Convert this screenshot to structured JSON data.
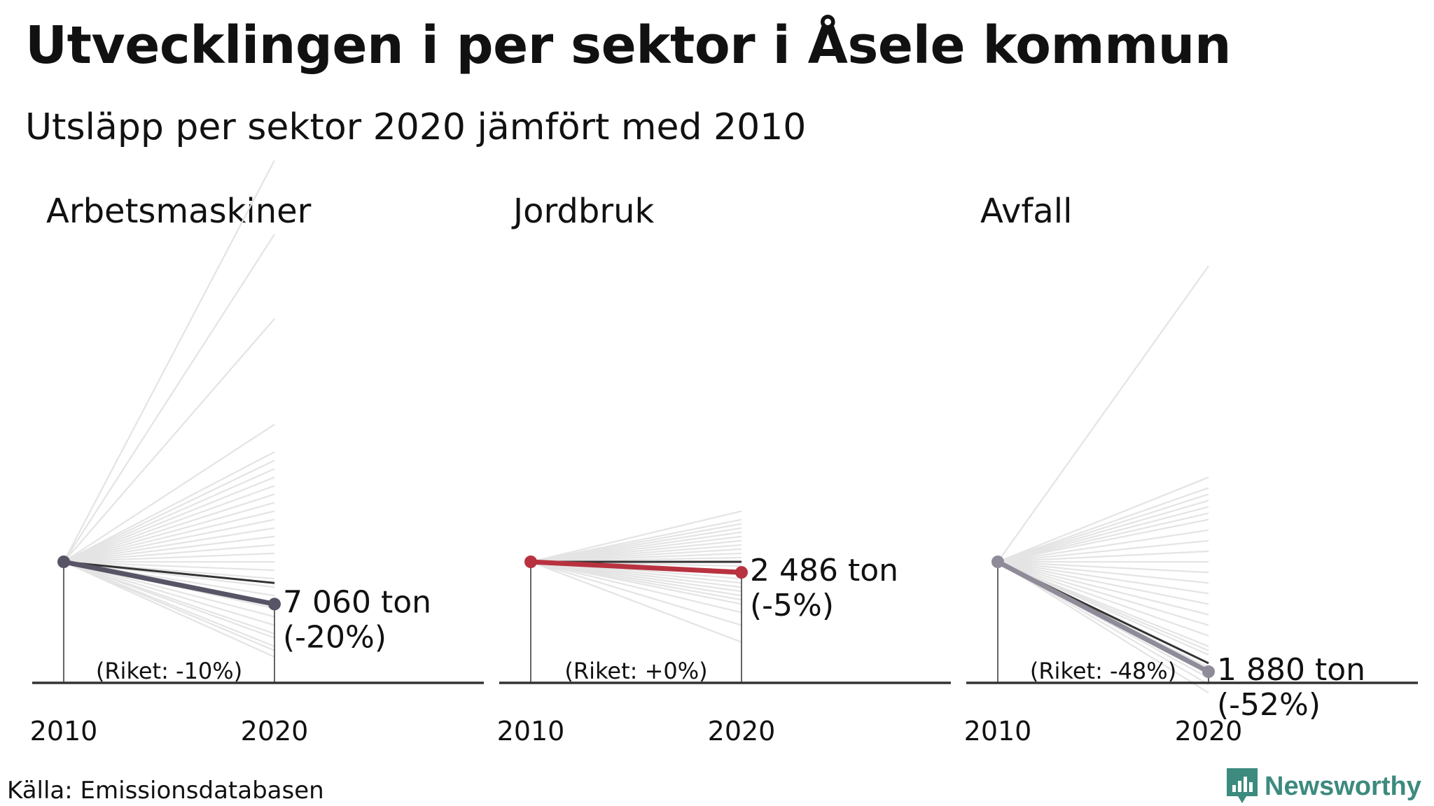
{
  "title": "Utvecklingen i per sektor i Åsele kommun",
  "subtitle": "Utsläpp per sektor 2020 jämfört med 2010",
  "source": "Källa: Emissionsdatabasen",
  "brand": {
    "name": "Newsworthy",
    "icon": "newsworthy-logo-icon",
    "color": "#3d8a7e"
  },
  "colors": {
    "background_lines": "#e4e4e4",
    "national_line": "#333333",
    "axis": "#333333"
  },
  "chart_data": [
    {
      "type": "line",
      "title": "Arbetsmaskiner",
      "x": [
        "2010",
        "2020"
      ],
      "change_pct": -20,
      "national_change_pct": -10,
      "value_label": "7 060 ton",
      "change_label": "(-20%)",
      "national_label": "(Riket: -10%)",
      "color": "#585466",
      "background_changes_pct": [
        190,
        155,
        115,
        65,
        52,
        48,
        44,
        40,
        36,
        32,
        28,
        24,
        20,
        16,
        12,
        8,
        4,
        0,
        -4,
        -8,
        -12,
        -16,
        -22,
        -26,
        -30,
        -34,
        -36,
        -40,
        -42,
        -45
      ]
    },
    {
      "type": "line",
      "title": "Jordbruk",
      "x": [
        "2010",
        "2020"
      ],
      "change_pct": -5,
      "national_change_pct": 0,
      "value_label": "2 486 ton",
      "change_label": "(-5%)",
      "national_label": "(Riket: +0%)",
      "color": "#b83240",
      "background_changes_pct": [
        24,
        20,
        18,
        16,
        14,
        12,
        10,
        8,
        6,
        4,
        2,
        -2,
        -4,
        -6,
        -8,
        -10,
        -12,
        -14,
        -16,
        -18,
        -20,
        -24,
        -30,
        -38
      ]
    },
    {
      "type": "line",
      "title": "Avfall",
      "x": [
        "2010",
        "2020"
      ],
      "change_pct": -52,
      "national_change_pct": -48,
      "value_label": "1 880 ton",
      "change_label": "(-52%)",
      "national_label": "(Riket: -48%)",
      "color": "#8f8b99",
      "background_changes_pct": [
        140,
        40,
        35,
        32,
        29,
        26,
        23,
        20,
        15,
        10,
        5,
        0,
        -5,
        -10,
        -15,
        -20,
        -25,
        -30,
        -35,
        -40,
        -42,
        -44,
        -50,
        -55,
        -58,
        -62
      ]
    }
  ]
}
